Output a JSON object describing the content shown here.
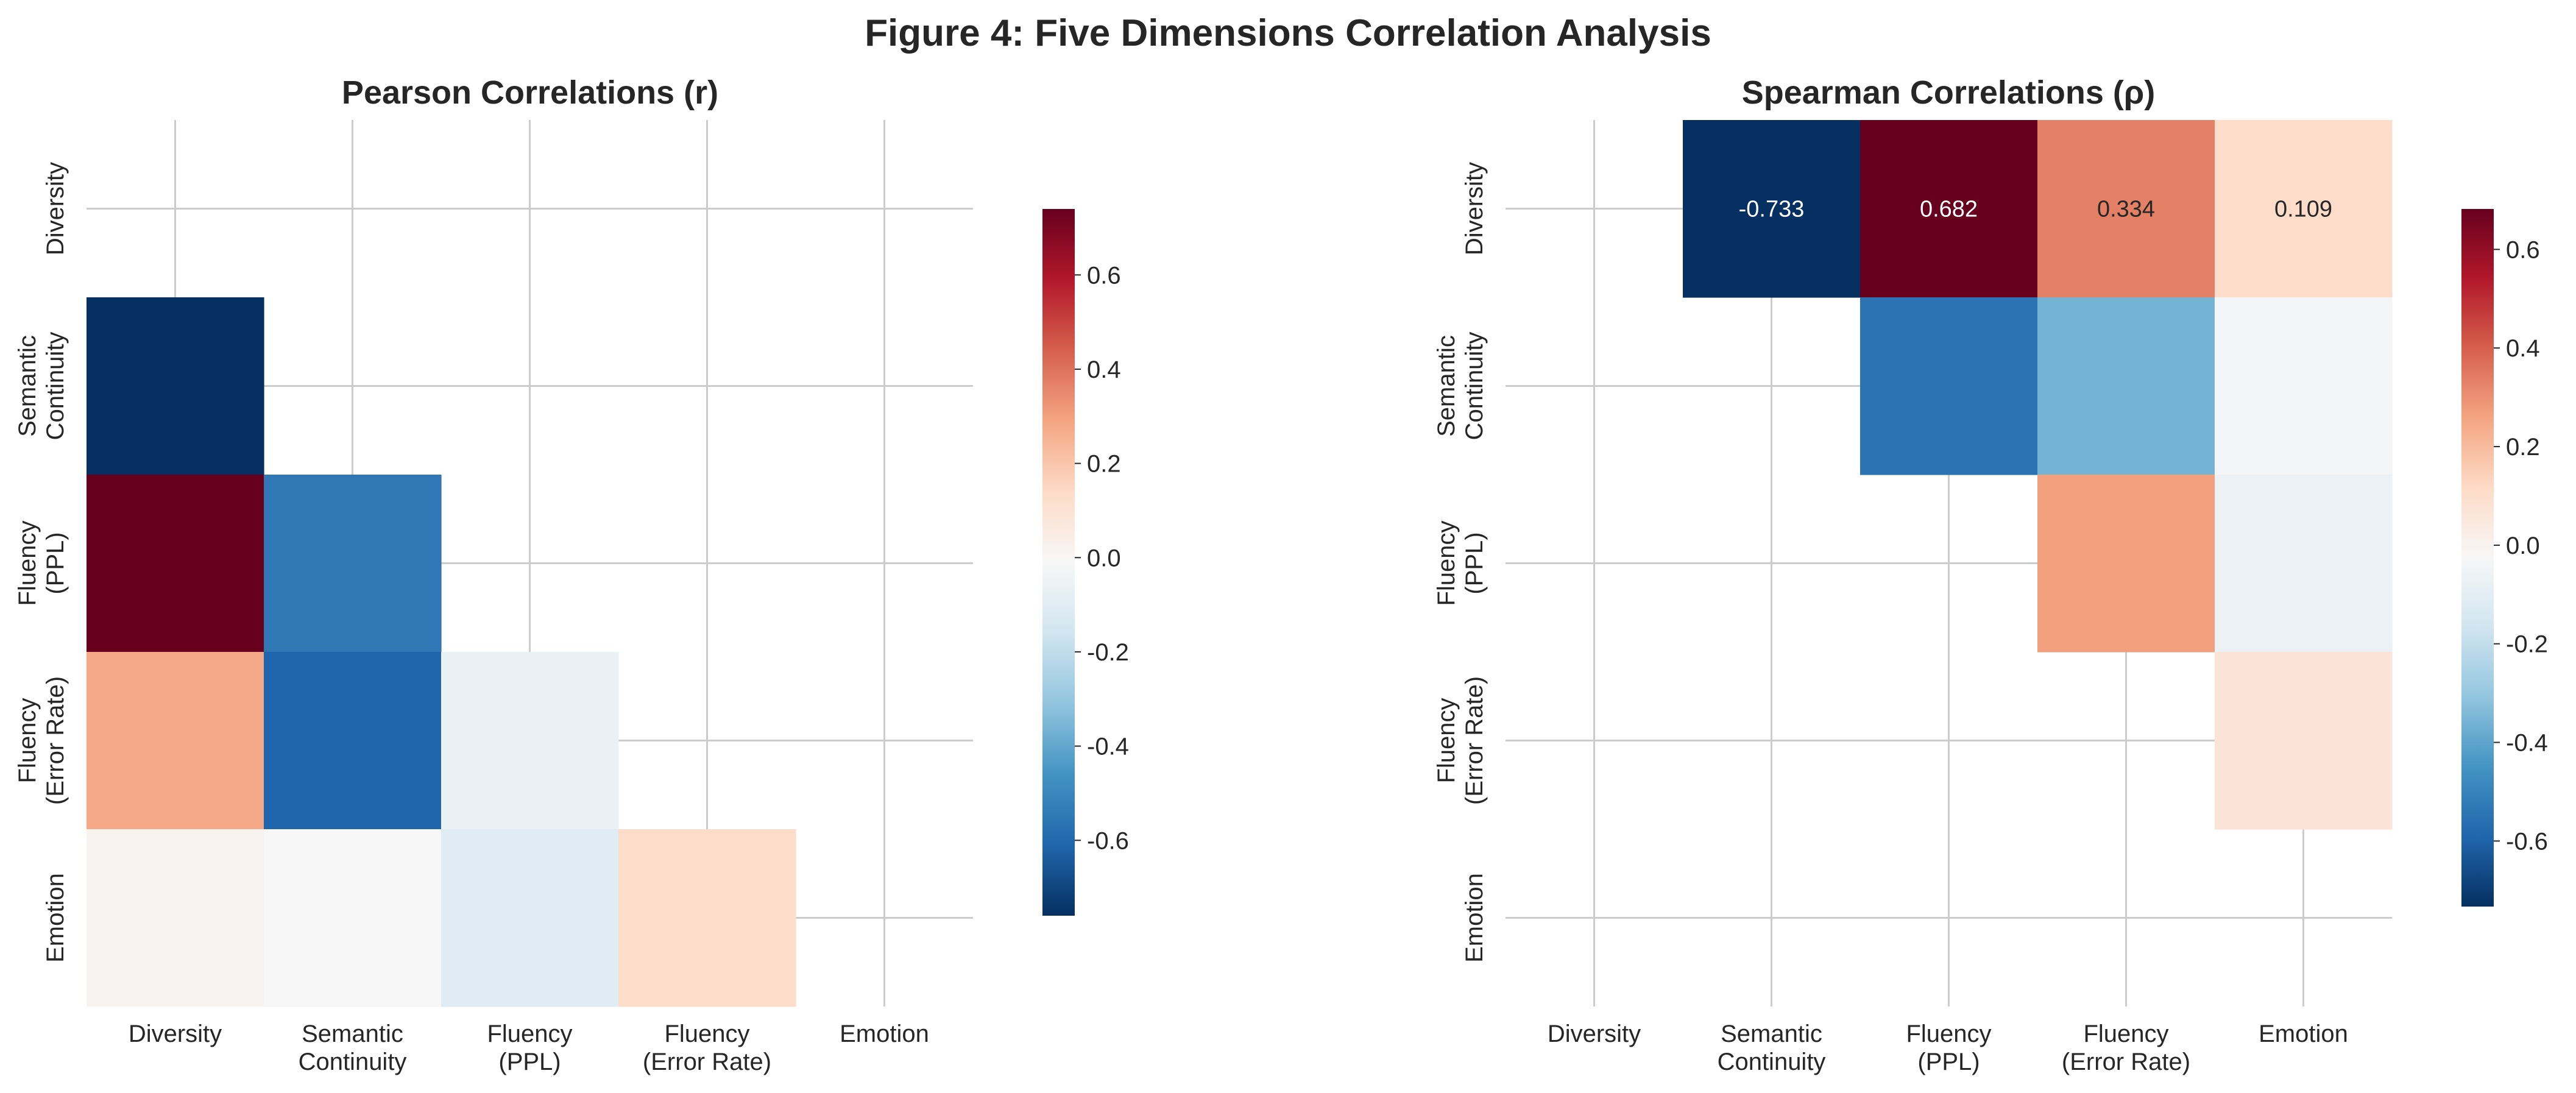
{
  "figure_title": "Figure 4: Five Dimensions Correlation Analysis",
  "colormap": {
    "name": "RdBu_r",
    "stops": [
      "#053061",
      "#2166ac",
      "#4393c3",
      "#92c5de",
      "#d1e5f0",
      "#f7f7f7",
      "#fddbc7",
      "#f4a582",
      "#d6604d",
      "#b2182b",
      "#67001f"
    ]
  },
  "chart_data": [
    {
      "type": "heatmap",
      "title": "Pearson Correlations (r)",
      "mask": "upper",
      "annotated": false,
      "grid": true,
      "x_tick_labels": [
        [
          "Diversity"
        ],
        [
          "Semantic",
          "Continuity"
        ],
        [
          "Fluency",
          "(PPL)"
        ],
        [
          "Fluency",
          "(Error Rate)"
        ],
        [
          "Emotion"
        ]
      ],
      "y_tick_labels": [
        [
          "Diversity"
        ],
        [
          "Semantic",
          "Continuity"
        ],
        [
          "Fluency",
          "(PPL)"
        ],
        [
          "Fluency",
          "(Error Rate)"
        ],
        [
          "Emotion"
        ]
      ],
      "cells": [
        {
          "row": 1,
          "col": 0,
          "value": -0.76
        },
        {
          "row": 2,
          "col": 0,
          "value": 0.74
        },
        {
          "row": 2,
          "col": 1,
          "value": -0.55
        },
        {
          "row": 3,
          "col": 0,
          "value": 0.28
        },
        {
          "row": 3,
          "col": 1,
          "value": -0.61
        },
        {
          "row": 3,
          "col": 2,
          "value": -0.06
        },
        {
          "row": 4,
          "col": 0,
          "value": 0.01
        },
        {
          "row": 4,
          "col": 1,
          "value": -0.01
        },
        {
          "row": 4,
          "col": 2,
          "value": -0.1
        },
        {
          "row": 4,
          "col": 3,
          "value": 0.13
        }
      ],
      "colorbar": {
        "vmin": -0.76,
        "vmax": 0.74,
        "ticks": [
          0.6,
          0.4,
          0.2,
          0.0,
          -0.2,
          -0.4,
          -0.6
        ],
        "tick_labels": [
          "0.6",
          "0.4",
          "0.2",
          "0.0",
          "-0.2",
          "-0.4",
          "-0.6"
        ]
      }
    },
    {
      "type": "heatmap",
      "title": "Spearman Correlations (ρ)",
      "mask": "lower",
      "annotated": true,
      "grid": true,
      "x_tick_labels": [
        [
          "Diversity"
        ],
        [
          "Semantic",
          "Continuity"
        ],
        [
          "Fluency",
          "(PPL)"
        ],
        [
          "Fluency",
          "(Error Rate)"
        ],
        [
          "Emotion"
        ]
      ],
      "y_tick_labels": [
        [
          "Diversity"
        ],
        [
          "Semantic",
          "Continuity"
        ],
        [
          "Fluency",
          "(PPL)"
        ],
        [
          "Fluency",
          "(Error Rate)"
        ],
        [
          "Emotion"
        ]
      ],
      "cells": [
        {
          "row": 0,
          "col": 1,
          "value": -0.733,
          "label": "-0.733"
        },
        {
          "row": 0,
          "col": 2,
          "value": 0.682,
          "label": "0.682"
        },
        {
          "row": 0,
          "col": 3,
          "value": 0.334,
          "label": "0.334"
        },
        {
          "row": 0,
          "col": 4,
          "value": 0.109,
          "label": "0.109"
        },
        {
          "row": 1,
          "col": 2,
          "value": -0.55
        },
        {
          "row": 1,
          "col": 3,
          "value": -0.36
        },
        {
          "row": 1,
          "col": 4,
          "value": -0.04
        },
        {
          "row": 2,
          "col": 3,
          "value": 0.27
        },
        {
          "row": 2,
          "col": 4,
          "value": -0.07
        },
        {
          "row": 3,
          "col": 4,
          "value": 0.07
        }
      ],
      "colorbar": {
        "vmin": -0.733,
        "vmax": 0.682,
        "ticks": [
          0.6,
          0.4,
          0.2,
          0.0,
          -0.2,
          -0.4,
          -0.6
        ],
        "tick_labels": [
          "0.6",
          "0.4",
          "0.2",
          "0.0",
          "-0.2",
          "-0.4",
          "-0.6"
        ]
      }
    }
  ]
}
